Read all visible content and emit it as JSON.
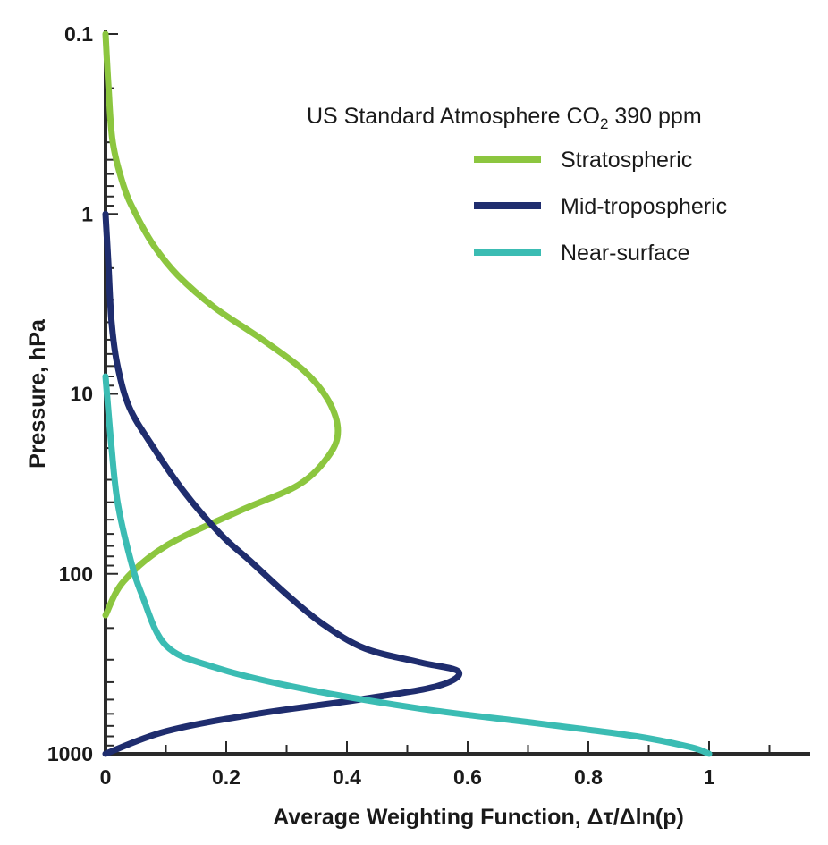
{
  "chart_data": {
    "type": "line",
    "title": "",
    "xlabel": "Average Weighting Function, Δτ/Δln(p)",
    "ylabel": "Pressure, hPa",
    "xlim": [
      0,
      1.15
    ],
    "ylim": [
      1000,
      0.1
    ],
    "y_scale": "log",
    "x_ticks": [
      0,
      0.2,
      0.4,
      0.6,
      0.8,
      1
    ],
    "x_tick_labels": [
      "0",
      "0.2",
      "0.4",
      "0.6",
      "0.8",
      "1"
    ],
    "y_ticks": [
      0.1,
      1,
      10,
      100,
      1000
    ],
    "y_tick_labels": [
      "0.1",
      "1",
      "10",
      "100",
      "1000"
    ],
    "grid": false,
    "legend": {
      "title_parts": [
        "US Standard Atmosphere CO",
        "2",
        " 390 ppm"
      ],
      "placement": "top-right"
    },
    "series": [
      {
        "name": "Stratospheric",
        "color": "#8cc63f",
        "points": [
          [
            0.0,
            0.1
          ],
          [
            0.005,
            0.2
          ],
          [
            0.012,
            0.4
          ],
          [
            0.03,
            0.7
          ],
          [
            0.05,
            1.0
          ],
          [
            0.08,
            1.5
          ],
          [
            0.12,
            2.2
          ],
          [
            0.18,
            3.3
          ],
          [
            0.26,
            5.0
          ],
          [
            0.33,
            7.5
          ],
          [
            0.37,
            11
          ],
          [
            0.385,
            16
          ],
          [
            0.37,
            22
          ],
          [
            0.32,
            32
          ],
          [
            0.22,
            45
          ],
          [
            0.1,
            70
          ],
          [
            0.03,
            110
          ],
          [
            0.0,
            170
          ]
        ]
      },
      {
        "name": "Mid-tropospheric",
        "color": "#1f2d6e",
        "points": [
          [
            0.0,
            1.0
          ],
          [
            0.005,
            2
          ],
          [
            0.01,
            4
          ],
          [
            0.02,
            7
          ],
          [
            0.04,
            12
          ],
          [
            0.08,
            20
          ],
          [
            0.13,
            35
          ],
          [
            0.19,
            60
          ],
          [
            0.24,
            85
          ],
          [
            0.3,
            130
          ],
          [
            0.36,
            190
          ],
          [
            0.43,
            260
          ],
          [
            0.52,
            310
          ],
          [
            0.585,
            350
          ],
          [
            0.55,
            420
          ],
          [
            0.42,
            500
          ],
          [
            0.25,
            600
          ],
          [
            0.1,
            750
          ],
          [
            0.0,
            1000
          ]
        ]
      },
      {
        "name": "Near-surface",
        "color": "#3bbcb3",
        "points": [
          [
            0.0,
            8
          ],
          [
            0.01,
            20
          ],
          [
            0.02,
            40
          ],
          [
            0.04,
            80
          ],
          [
            0.06,
            130
          ],
          [
            0.1,
            250
          ],
          [
            0.18,
            330
          ],
          [
            0.32,
            430
          ],
          [
            0.52,
            560
          ],
          [
            0.72,
            680
          ],
          [
            0.88,
            800
          ],
          [
            0.97,
            920
          ],
          [
            1.0,
            1000
          ]
        ]
      }
    ]
  }
}
